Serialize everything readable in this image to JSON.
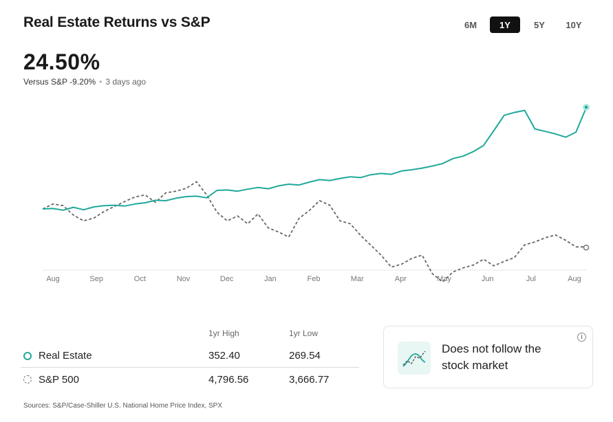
{
  "header": {
    "title": "Real Estate Returns vs S&P",
    "ranges": [
      "6M",
      "1Y",
      "5Y",
      "10Y"
    ],
    "active_range": "1Y"
  },
  "summary": {
    "value": "24.50%",
    "versus": "Versus S&P -9.20%",
    "updated": "3 days ago"
  },
  "chart_data": {
    "type": "line",
    "x_labels": [
      "Aug",
      "Sep",
      "Oct",
      "Nov",
      "Dec",
      "Jan",
      "Feb",
      "Mar",
      "Apr",
      "May",
      "Jun",
      "Jul",
      "Aug"
    ],
    "series": [
      {
        "name": "Real Estate",
        "color": "#1fa89a",
        "style": "solid",
        "values": [
          0,
          0.1,
          -0.3,
          0.4,
          -0.2,
          0.5,
          0.8,
          0.9,
          0.7,
          1.2,
          1.5,
          2.1,
          2.0,
          2.6,
          3.0,
          3.1,
          2.7,
          4.5,
          4.6,
          4.3,
          4.8,
          5.2,
          4.9,
          5.6,
          6.0,
          5.8,
          6.5,
          7.1,
          6.9,
          7.4,
          7.8,
          7.6,
          8.3,
          8.6,
          8.4,
          9.2,
          9.5,
          9.9,
          10.4,
          11.0,
          12.2,
          12.8,
          13.9,
          15.4,
          19.0,
          22.7,
          23.4,
          23.9,
          19.4,
          18.8,
          18.2,
          17.4,
          18.6,
          24.5
        ]
      },
      {
        "name": "S&P 500",
        "color": "#666666",
        "style": "dashed",
        "values": [
          0,
          1.2,
          0.8,
          -1.5,
          -2.9,
          -2.2,
          -0.6,
          0.6,
          1.8,
          2.9,
          3.4,
          1.6,
          3.9,
          4.3,
          5.0,
          6.6,
          3.4,
          -0.8,
          -2.9,
          -1.7,
          -3.6,
          -1.2,
          -4.6,
          -5.6,
          -6.8,
          -2.3,
          -0.4,
          2.0,
          0.9,
          -2.9,
          -3.6,
          -6.4,
          -8.8,
          -11.2,
          -14.1,
          -13.4,
          -12.0,
          -11.2,
          -15.7,
          -17.7,
          -15.3,
          -14.3,
          -13.6,
          -12.2,
          -13.8,
          -12.7,
          -11.8,
          -8.7,
          -8.0,
          -7.0,
          -6.3,
          -7.6,
          -9.2,
          -9.2
        ]
      }
    ],
    "end_markers": [
      "Real Estate",
      "S&P 500"
    ],
    "grid": false,
    "legend": "below"
  },
  "stats": {
    "headers": [
      "1yr High",
      "1yr Low"
    ],
    "rows": [
      {
        "name": "Real Estate",
        "high": "352.40",
        "low": "269.54"
      },
      {
        "name": "S&P 500",
        "high": "4,796.56",
        "low": "3,666.77"
      }
    ]
  },
  "card": {
    "text": "Does not follow the stock market",
    "info_icon": "info-icon",
    "chart_icon": "scatter-trend-icon"
  },
  "sources": "Sources: S&P/Case-Shiller U.S. National Home Price Index, SPX"
}
